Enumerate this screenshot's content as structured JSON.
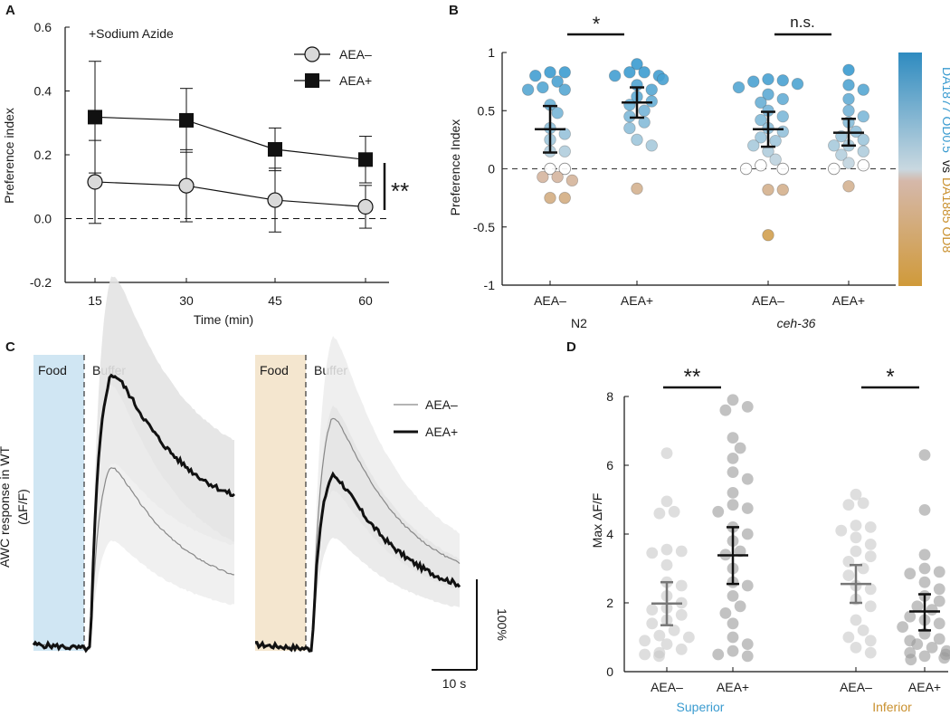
{
  "colors": {
    "black": "#111111",
    "marker_fill_off": "#d9d9d9",
    "blue_top": "#2e8bc0",
    "beige_mid": "#d5b8aa",
    "orange_bottom": "#d09a3a",
    "food_blue": "#d0e6f3",
    "food_beige": "#f4e6cf",
    "label_blue": "#3a9bd0",
    "label_orange": "#c9902e"
  },
  "chart_data": [
    {
      "panel": "A",
      "type": "line",
      "annotation": "+Sodium Azide",
      "x": [
        15,
        30,
        45,
        60
      ],
      "xlabel": "Time (min)",
      "ylabel": "Preference index",
      "ylim": [
        -0.2,
        0.6
      ],
      "yticks": [
        "0.6",
        "0.4",
        "0.2",
        "0.0",
        "-0.2"
      ],
      "xticks": [
        "15",
        "30",
        "45",
        "60"
      ],
      "series": [
        {
          "name": "AEA–",
          "values": [
            0.115,
            0.103,
            0.058,
            0.037
          ],
          "err": [
            0.13,
            0.113,
            0.1,
            0.067
          ],
          "marker": "circle"
        },
        {
          "name": "AEA+",
          "values": [
            0.318,
            0.308,
            0.217,
            0.185
          ],
          "err": [
            0.175,
            0.1,
            0.067,
            0.073
          ],
          "marker": "square"
        }
      ],
      "significance": "**"
    },
    {
      "panel": "B",
      "type": "scatter",
      "ylabel": "Preference Index",
      "ylim": [
        -1,
        1
      ],
      "yticks": [
        "1",
        "0.5",
        "0",
        "-0.5",
        "-1"
      ],
      "categories": [
        "AEA–",
        "AEA+",
        "AEA–",
        "AEA+"
      ],
      "groups": [
        "N2",
        "ceh-36"
      ],
      "group_sig": [
        "*",
        "n.s."
      ],
      "colorbar_top": "DA1877 OD0.5",
      "colorbar_vs": "vs",
      "colorbar_bottom": "DA1885 OD8",
      "means": [
        0.34,
        0.57,
        0.34,
        0.31
      ],
      "ci": [
        [
          0.14,
          0.54
        ],
        [
          0.44,
          0.7
        ],
        [
          0.19,
          0.49
        ],
        [
          0.2,
          0.43
        ]
      ],
      "points": [
        [
          0.83,
          0.83,
          0.8,
          0.75,
          0.7,
          0.68,
          0.68,
          0.55,
          0.48,
          0.35,
          0.3,
          0.25,
          0.15,
          0.15,
          0.0,
          0.0,
          -0.07,
          -0.07,
          -0.1,
          -0.25,
          -0.25
        ],
        [
          0.9,
          0.83,
          0.83,
          0.8,
          0.8,
          0.77,
          0.72,
          0.68,
          0.62,
          0.58,
          0.55,
          0.5,
          0.45,
          0.4,
          0.35,
          0.25,
          0.2,
          -0.17
        ],
        [
          0.77,
          0.76,
          0.75,
          0.73,
          0.7,
          0.64,
          0.6,
          0.57,
          0.5,
          0.45,
          0.42,
          0.35,
          0.32,
          0.27,
          0.24,
          0.2,
          0.15,
          0.08,
          0.03,
          0.0,
          0.0,
          -0.18,
          -0.18,
          -0.57
        ],
        [
          0.85,
          0.72,
          0.68,
          0.6,
          0.5,
          0.45,
          0.4,
          0.32,
          0.28,
          0.25,
          0.2,
          0.2,
          0.15,
          0.12,
          0.05,
          0.03,
          0.0,
          -0.15
        ]
      ]
    },
    {
      "panel": "C",
      "type": "area",
      "ylabel": "AWC response in WT",
      "ylabel2": "(ΔF/F)",
      "stim_label": "Food",
      "post_label": "Buffer",
      "series": [
        {
          "name": "AEA–",
          "trace1_peak": 2.2,
          "trace2_peak": 2.8
        },
        {
          "name": "AEA+",
          "trace1_peak": 3.3,
          "trace2_peak": 2.1
        }
      ],
      "scale_y": "100%",
      "scale_x": "10 s"
    },
    {
      "panel": "D",
      "type": "scatter",
      "ylabel": "Max ΔF/F",
      "ylim": [
        0,
        8
      ],
      "yticks": [
        "8",
        "6",
        "4",
        "2",
        "0"
      ],
      "categories": [
        "AEA–",
        "AEA+",
        "AEA–",
        "AEA+"
      ],
      "groups": [
        "Superior",
        "Inferior"
      ],
      "group_sig": [
        "**",
        "*"
      ],
      "means": [
        1.98,
        3.38,
        2.55,
        1.75
      ],
      "ci": [
        [
          1.35,
          2.6
        ],
        [
          2.55,
          4.2
        ],
        [
          2.0,
          3.1
        ],
        [
          1.2,
          2.25
        ]
      ],
      "points": [
        [
          6.35,
          4.95,
          4.65,
          4.6,
          3.55,
          3.5,
          3.45,
          3.1,
          2.6,
          2.5,
          2.2,
          2.0,
          1.85,
          1.8,
          1.65,
          1.5,
          1.4,
          1.2,
          1.05,
          1.0,
          0.9,
          0.8,
          0.65,
          0.55,
          0.5,
          0.45
        ],
        [
          7.9,
          7.7,
          7.6,
          6.8,
          6.5,
          6.2,
          5.8,
          5.6,
          5.2,
          4.85,
          4.75,
          4.65,
          4.2,
          4.0,
          3.8,
          3.5,
          3.4,
          3.0,
          2.6,
          2.5,
          2.2,
          1.9,
          1.7,
          1.4,
          1.0,
          0.8,
          0.6,
          0.5,
          0.45
        ],
        [
          5.15,
          4.9,
          4.85,
          4.25,
          4.2,
          4.1,
          3.9,
          3.7,
          3.5,
          3.35,
          3.2,
          3.0,
          2.8,
          2.5,
          2.4,
          2.1,
          1.9,
          1.5,
          1.2,
          1.0,
          0.9,
          0.7,
          0.55
        ],
        [
          6.3,
          4.7,
          3.4,
          3.0,
          2.9,
          2.85,
          2.6,
          2.4,
          2.2,
          2.05,
          1.9,
          1.8,
          1.6,
          1.5,
          1.4,
          1.3,
          1.1,
          0.95,
          0.9,
          0.8,
          0.7,
          0.6,
          0.55,
          0.5,
          0.45,
          0.4,
          0.35
        ]
      ]
    }
  ]
}
